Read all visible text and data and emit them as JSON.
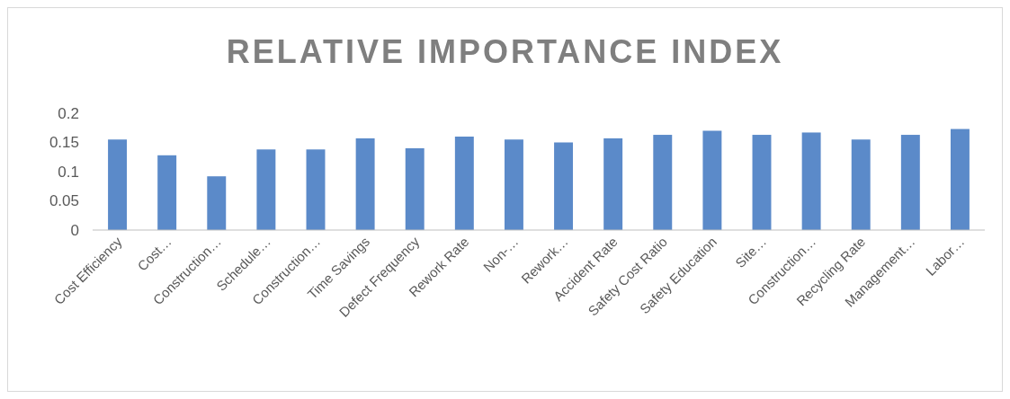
{
  "chart_data": {
    "type": "bar",
    "title": "RELATIVE IMPORTANCE INDEX",
    "categories": [
      "Cost Efficiency",
      "Cost…",
      "Construction…",
      "Schedule…",
      "Construction…",
      "Time Savings",
      "Defect Frequency",
      "Rework Rate",
      "Non-…",
      "Rework…",
      "Accident Rate",
      "Safety Cost Ratio",
      "Safety Education",
      "Site…",
      "Construction…",
      "Recycling Rate",
      "Management…",
      "Labor…"
    ],
    "values": [
      0.155,
      0.128,
      0.092,
      0.138,
      0.138,
      0.157,
      0.14,
      0.16,
      0.155,
      0.15,
      0.157,
      0.163,
      0.17,
      0.163,
      0.167,
      0.155,
      0.163,
      0.173
    ],
    "color": "#5b8ac9",
    "ylim": [
      0,
      0.2
    ],
    "yticks": [
      0,
      0.05,
      0.1,
      0.15,
      0.2
    ],
    "grid": false
  }
}
